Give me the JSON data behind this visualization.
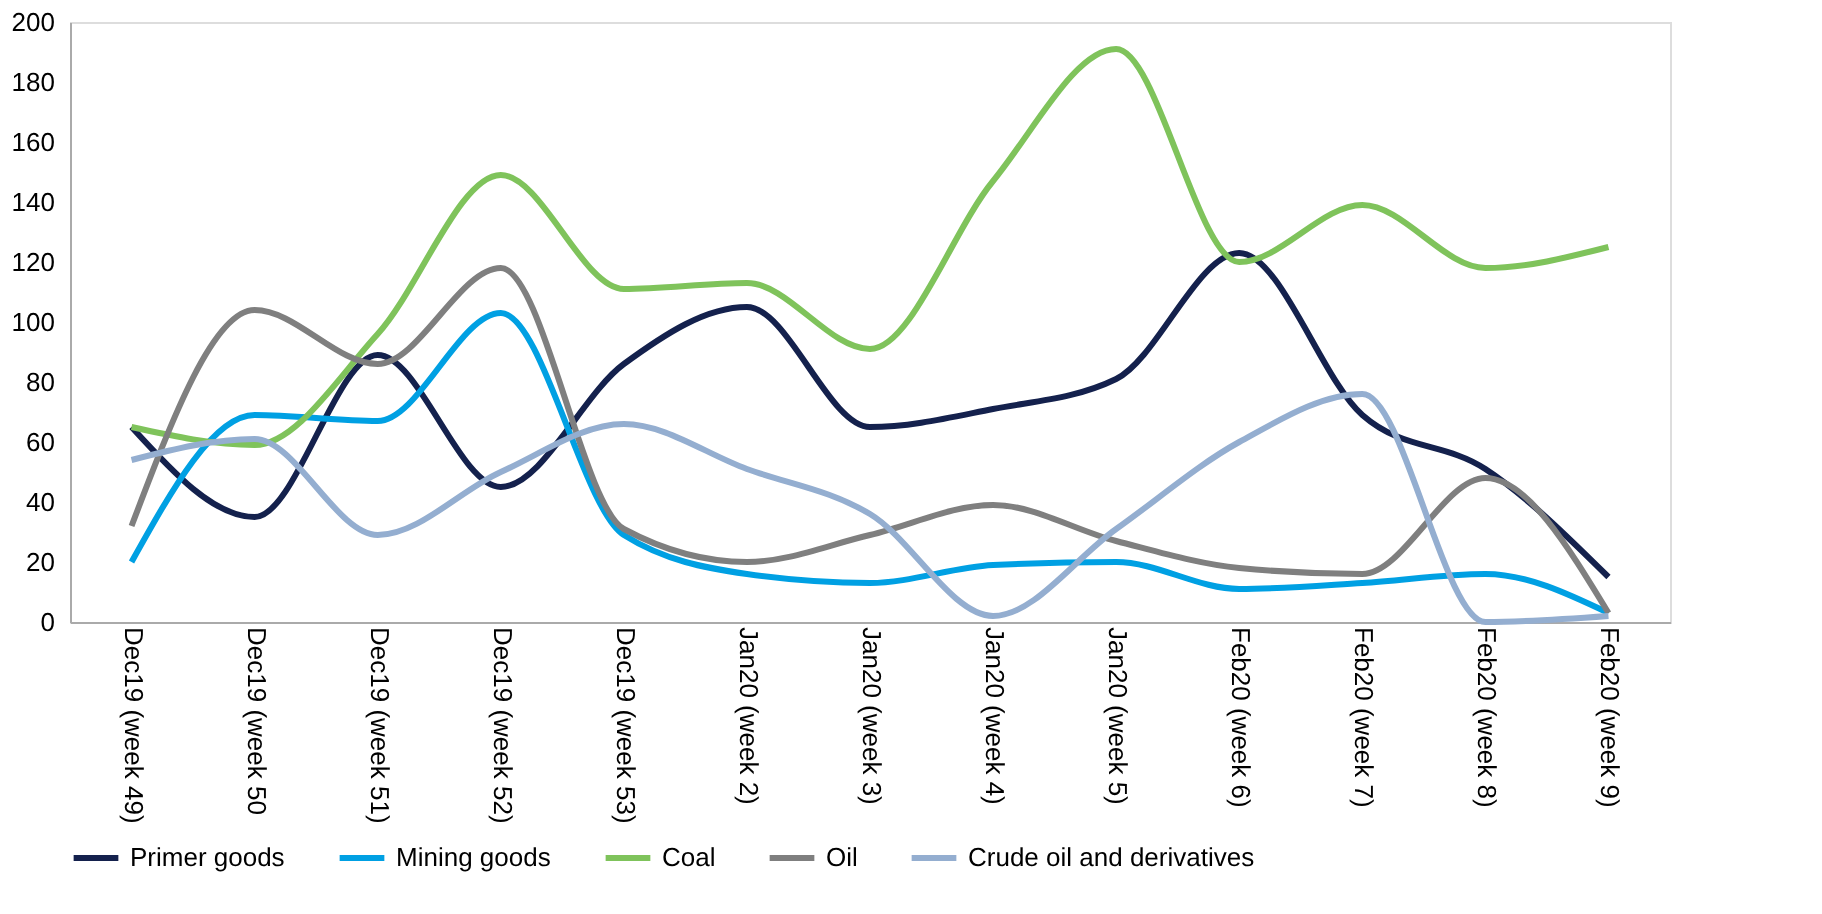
{
  "chart_data": {
    "type": "line",
    "categories": [
      "Dec19 (week 49)",
      "Dec19 (week 50",
      "Dec19 (week 51)",
      "Dec19 (week 52)",
      "Dec19 (week 53)",
      "Jan20 (week 2)",
      "Jan20 (week 3)",
      "Jan20 (week 4)",
      "Jan20 (week 5)",
      "Feb20 (week 6)",
      "Feb20 (week 7)",
      "Feb20 (week 8)",
      "Feb20 (week 9)"
    ],
    "series": [
      {
        "name": "Primer goods",
        "color": "#14214d",
        "values": [
          65,
          35,
          89,
          45,
          86,
          105,
          65,
          71,
          81,
          123,
          69,
          51,
          15
        ]
      },
      {
        "name": "Mining goods",
        "color": "#00a0e3",
        "values": [
          20,
          69,
          67,
          103,
          29,
          16,
          13,
          19,
          20,
          11,
          13,
          16,
          3
        ]
      },
      {
        "name": "Coal",
        "color": "#7fc35b",
        "values": [
          65,
          59,
          96,
          149,
          111,
          113,
          91,
          147,
          191,
          120,
          139,
          118,
          125
        ]
      },
      {
        "name": "Oil",
        "color": "#7f7f7f",
        "values": [
          32,
          104,
          86,
          118,
          31,
          20,
          29,
          39,
          27,
          18,
          16,
          48,
          3
        ]
      },
      {
        "name": "Crude oil and derivatives",
        "color": "#94aed0",
        "values": [
          54,
          61,
          29,
          50,
          66,
          51,
          36,
          2,
          31,
          60,
          76,
          0,
          2
        ]
      }
    ],
    "ylim": [
      0,
      200
    ],
    "yticks": [
      0,
      20,
      40,
      60,
      80,
      100,
      120,
      140,
      160,
      180,
      200
    ],
    "grid": false,
    "legend": "bottom",
    "marker": "none",
    "line_style": "solid"
  }
}
